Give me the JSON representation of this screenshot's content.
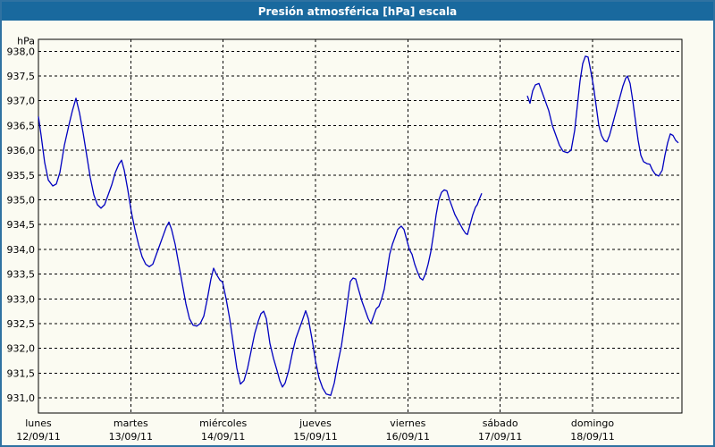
{
  "window": {
    "title": "Presión atmosférica [hPa] escala"
  },
  "colors": {
    "titlebar": "#19699e",
    "window_border": "#2f72a2",
    "background": "#fbfbf2",
    "line": "#0000c0",
    "grid": "#000000",
    "text": "#000000"
  },
  "chart_data": {
    "type": "line",
    "title": "Presión atmosférica [hPa] escala",
    "grid": "dashed",
    "legend": "none",
    "y_axis": {
      "unit_label": "hPa",
      "max": 938.0,
      "min": 931.0,
      "step": 0.5,
      "tick_labels": [
        "938,0",
        "937,5",
        "937,0",
        "936,5",
        "936,0",
        "935,5",
        "935,0",
        "934,5",
        "934,0",
        "933,5",
        "933,0",
        "932,5",
        "932,0",
        "931,5",
        "931,0"
      ]
    },
    "x_axis": {
      "unit": "hours since 12/09/11 00:00, one tick per day",
      "days": [
        {
          "weekday": "lunes",
          "date": "12/09/11"
        },
        {
          "weekday": "martes",
          "date": "13/09/11"
        },
        {
          "weekday": "miércoles",
          "date": "14/09/11"
        },
        {
          "weekday": "jueves",
          "date": "15/09/11"
        },
        {
          "weekday": "viernes",
          "date": "16/09/11"
        },
        {
          "weekday": "sábado",
          "date": "17/09/11"
        },
        {
          "weekday": "domingo",
          "date": "18/09/11"
        }
      ]
    },
    "series": [
      {
        "name": "presión atmosférica",
        "color": "#0000c0",
        "segments": [
          {
            "x_hours": [
              0,
              0.7,
              1.63,
              2.55,
              3.72,
              4.65,
              5.57,
              6.74,
              7.9,
              8.83,
              9.75,
              10.68,
              11.61,
              12.54,
              13.47,
              14.4,
              15.33,
              16.26,
              17.19,
              18.12,
              19.04,
              19.97,
              20.9,
              21.6,
              22.3,
              23.23,
              24.15,
              25.08,
              26.01,
              26.94,
              27.87,
              28.8,
              29.73,
              30.66,
              31.59,
              32.51,
              33.21,
              33.91,
              34.61,
              35.54,
              36.47,
              37.39,
              38.32,
              39.25,
              40.18,
              41.11,
              42.04,
              42.97,
              43.9,
              44.83,
              45.52,
              46.22,
              47.15,
              47.85,
              48.78,
              49.71,
              50.64,
              51.56,
              52.49,
              53.42,
              54.35,
              55.28,
              56.21,
              57.14,
              57.84,
              58.53,
              59.23,
              60.16,
              61.09,
              62.02,
              62.71,
              63.41,
              64.11,
              65.04,
              65.97,
              66.89,
              67.82,
              68.52,
              69.45,
              70.15,
              71.07,
              72,
              72.93,
              73.86,
              74.79,
              75.95,
              76.88,
              77.81,
              78.74,
              79.67,
              80.6,
              81.06,
              81.76,
              82.45,
              83.15,
              84.08,
              85.01,
              85.71,
              86.4,
              87.1,
              87.8,
              88.49,
              89.19,
              89.89,
              90.58,
              91.28,
              91.98,
              92.67,
              93.37,
              94.3,
              95,
              95.69,
              96.39,
              97.09,
              97.78,
              98.48,
              99.18,
              99.87,
              100.57,
              101.27,
              101.96,
              102.66,
              103.36,
              104.05,
              104.75,
              105.45,
              106.14,
              106.84,
              107.54,
              108.23,
              108.93,
              109.63,
              110.32,
              111.02,
              111.48,
              112.18,
              112.88,
              113.57,
              114.04,
              114.5,
              115.2
            ],
            "values": [
              936.68,
              936.3,
              935.75,
              935.4,
              935.28,
              935.32,
              935.55,
              936.1,
              936.5,
              936.8,
              937.05,
              936.75,
              936.35,
              935.9,
              935.45,
              935.1,
              934.9,
              934.83,
              934.9,
              935.1,
              935.3,
              935.55,
              935.72,
              935.8,
              935.6,
              935.2,
              934.75,
              934.4,
              934.1,
              933.85,
              933.7,
              933.65,
              933.7,
              933.9,
              934.1,
              934.3,
              934.45,
              934.55,
              934.4,
              934.1,
              933.7,
              933.3,
              932.9,
              932.6,
              932.47,
              932.45,
              932.5,
              932.65,
              933,
              933.4,
              933.62,
              933.5,
              933.38,
              933.34,
              933,
              932.6,
              932.1,
              931.6,
              931.28,
              931.35,
              931.6,
              931.95,
              932.3,
              932.55,
              932.7,
              932.75,
              932.6,
              932.1,
              931.8,
              931.55,
              931.35,
              931.22,
              931.3,
              931.55,
              931.9,
              932.2,
              932.4,
              932.55,
              932.76,
              932.6,
              932.2,
              931.75,
              931.4,
              931.2,
              931.08,
              931.05,
              931.3,
              931.7,
              932.05,
              932.55,
              933.1,
              933.35,
              933.42,
              933.4,
              933.2,
              932.95,
              932.75,
              932.6,
              932.5,
              932.65,
              932.8,
              932.85,
              933,
              933.2,
              933.55,
              933.9,
              934.1,
              934.25,
              934.4,
              934.47,
              934.4,
              934.2,
              934,
              933.9,
              933.7,
              933.55,
              933.42,
              933.38,
              933.5,
              933.7,
              933.95,
              934.3,
              934.7,
              935,
              935.15,
              935.2,
              935.18,
              935,
              934.85,
              934.7,
              934.6,
              934.5,
              934.4,
              934.32,
              934.3,
              934.5,
              934.7,
              934.85,
              934.9,
              935,
              935.13
            ]
          },
          {
            "x_hours": [
              127.04,
              127.74,
              128.43,
              129.13,
              130.06,
              130.76,
              131.69,
              132.62,
              133.55,
              134.48,
              135.41,
              136.33,
              137.5,
              138.43,
              139.35,
              140.05,
              140.75,
              141.45,
              142.14,
              142.84,
              143.54,
              144.23,
              144.93,
              145.63,
              146.32,
              147.02,
              147.72,
              148.41,
              149.11,
              149.81,
              150.5,
              151.2,
              151.9,
              152.59,
              153.06,
              153.75,
              154.45,
              155.15,
              155.84,
              156.54,
              157.24,
              158.17,
              158.86,
              159.56,
              160.26,
              161.19,
              162.12,
              162.81,
              163.51,
              164.21,
              164.9,
              165.6,
              166.3
            ],
            "values": [
              937.1,
              936.95,
              937.2,
              937.32,
              937.35,
              937.2,
              937,
              936.8,
              936.5,
              936.3,
              936.1,
              935.98,
              935.95,
              936,
              936.4,
              936.9,
              937.4,
              937.75,
              937.9,
              937.88,
              937.6,
              937.3,
              936.9,
              936.5,
              936.3,
              936.2,
              936.17,
              936.3,
              936.5,
              936.7,
              936.9,
              937.1,
              937.3,
              937.45,
              937.5,
              937.35,
              937,
              936.6,
              936.2,
              935.9,
              935.77,
              935.73,
              935.72,
              935.6,
              935.52,
              935.48,
              935.6,
              935.9,
              936.15,
              936.33,
              936.3,
              936.2,
              936.15
            ]
          }
        ]
      }
    ]
  }
}
